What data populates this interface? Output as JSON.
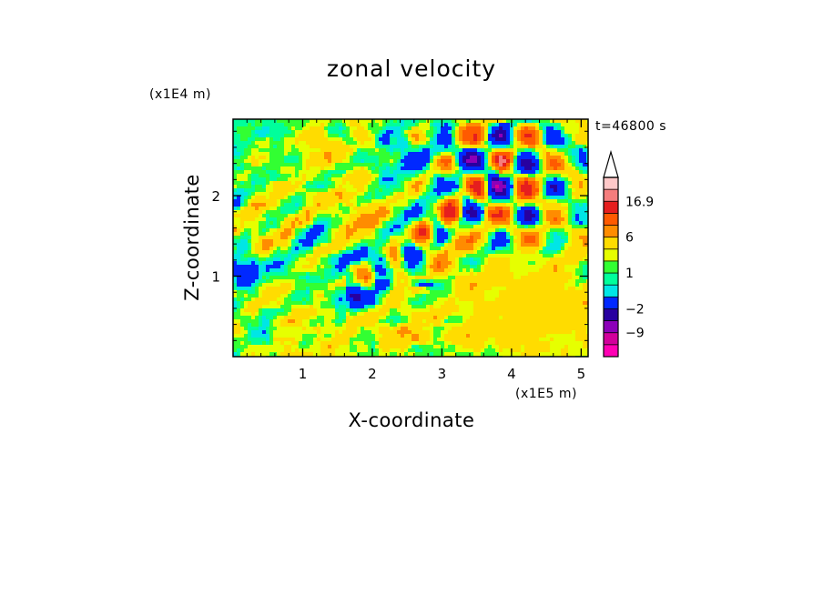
{
  "chart_data": {
    "type": "heatmap",
    "title": "zonal velocity",
    "xlabel": "X-coordinate",
    "ylabel": "Z-coordinate",
    "x_scale_label": "(x1E5 m)",
    "y_scale_label": "(x1E4 m)",
    "time_label": "t=46800 s",
    "xlim": [
      0,
      5.1
    ],
    "ylim": [
      0,
      2.95
    ],
    "x_ticks": [
      1,
      2,
      3,
      4,
      5
    ],
    "x_tick_labels": [
      "1",
      "2",
      "3",
      "4",
      "5"
    ],
    "y_ticks": [
      1,
      2
    ],
    "y_tick_labels": [
      "1",
      "2"
    ],
    "colorbar": {
      "levels": [
        -15,
        -12,
        -9,
        -6,
        -2,
        -1,
        0,
        1,
        2,
        4,
        6,
        9,
        12,
        16.9
      ],
      "colors": [
        "#ff00b4",
        "#d2009b",
        "#8c00b9",
        "#2800a0",
        "#0028ff",
        "#00e6e6",
        "#00ff9b",
        "#32ff32",
        "#e6ff00",
        "#ffdc00",
        "#ff8c00",
        "#ff5a00",
        "#e61e1e",
        "#f57d7d",
        "#ffc8c8"
      ],
      "extend": "max",
      "labels": [
        "16.9",
        "6",
        "1",
        "−2",
        "−9"
      ],
      "label_values": [
        16.9,
        6,
        1,
        -2,
        -9
      ]
    },
    "field_description_values": {
      "background_range": [
        -2,
        2
      ],
      "max": 16.9,
      "min": -15
    }
  }
}
